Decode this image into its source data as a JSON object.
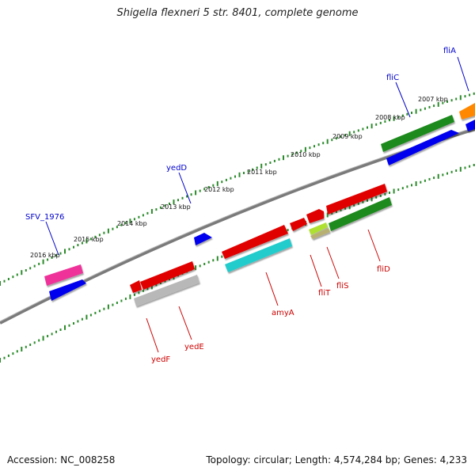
{
  "header": {
    "title": "Shigella flexneri 5 str. 8401, complete genome"
  },
  "footer": {
    "accession": "Accession: NC_008258",
    "summary": "Topology: circular; Length: 4,574,284 bp; Genes: 4,233"
  },
  "colors": {
    "backbone": "#808080",
    "tick_track": "#2a8a2a",
    "forward_label": "#0000cc",
    "reverse_label": "#cc0000",
    "red": "#e10000",
    "blue": "#0000ee",
    "green": "#208a20",
    "pink": "#ee3399",
    "cyan": "#22cccc",
    "grey": "#b8b8b8",
    "olive": "#b8b070",
    "orange": "#ff8800",
    "yellowgreen": "#aee030"
  },
  "scale_labels": [
    "2007 kbp",
    "2008 kbp",
    "2009 kbp",
    "2010 kbp",
    "2011 kbp",
    "2012 kbp",
    "2013 kbp",
    "2014 kbp",
    "2015 kbp",
    "2016 kbp"
  ],
  "gene_labels": {
    "forward": [
      "fliA",
      "fliC",
      "yedD",
      "SFV_1976"
    ],
    "reverse": [
      "fliD",
      "fliS",
      "fliT",
      "amyA",
      "yedE",
      "yedF"
    ]
  }
}
